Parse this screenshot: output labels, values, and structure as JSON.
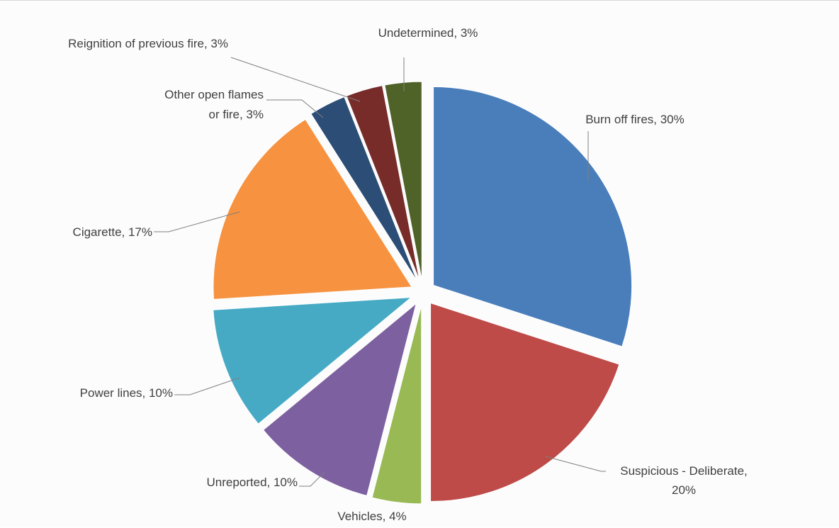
{
  "chart_data": {
    "type": "pie",
    "title": "",
    "slices": [
      {
        "label": "Burn off fires, 30%",
        "name": "Burn off fires",
        "value": 30,
        "color": "#4a7ebb"
      },
      {
        "label": "Suspicious - Deliberate, 20%",
        "name": "Suspicious - Deliberate",
        "value": 20,
        "color": "#be4b48"
      },
      {
        "label": "Vehicles, 4%",
        "name": "Vehicles",
        "value": 4,
        "color": "#98b954"
      },
      {
        "label": "Unreported, 10%",
        "name": "Unreported",
        "value": 10,
        "color": "#7d60a0"
      },
      {
        "label": "Power lines, 10%",
        "name": "Power lines",
        "value": 10,
        "color": "#46aac5"
      },
      {
        "label": "Cigarette, 17%",
        "name": "Cigarette",
        "value": 17,
        "color": "#f69240"
      },
      {
        "label": "Other open flames or fire, 3%",
        "name": "Other open flames or fire",
        "value": 3,
        "color": "#2c4d75"
      },
      {
        "label": "Reignition of previous fire, 3%",
        "name": "Reignition of previous fire",
        "value": 3,
        "color": "#772c2a"
      },
      {
        "label": "Undetermined, 3%",
        "name": "Undetermined",
        "value": 3,
        "color": "#4f6228"
      }
    ],
    "legend": "none",
    "data_labels": "outside-with-leader-lines",
    "exploded": true
  }
}
